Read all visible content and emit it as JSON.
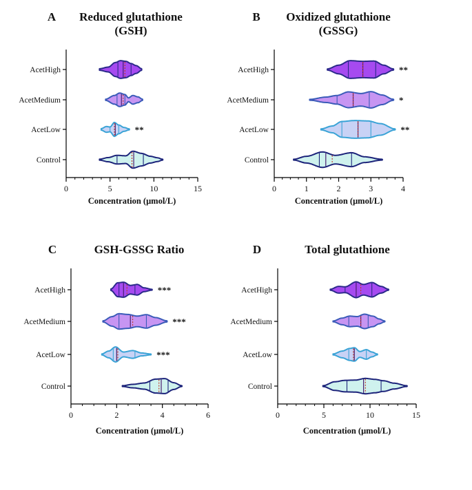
{
  "figure": {
    "categories": [
      "AcetHigh",
      "AcetMedium",
      "AcetLow",
      "Control"
    ],
    "fills": {
      "AcetHigh": "#a64af0",
      "AcetMedium": "#c795f2",
      "AcetLow": "#c8d2f5",
      "Control": "#cff2ee"
    },
    "outlines": {
      "AcetHigh": "#2b2a8a",
      "AcetMedium": "#3a5bb8",
      "AcetLow": "#3aa3d6",
      "Control": "#1c237a"
    },
    "median_color": "#4a1e6e",
    "mean_color": "#c0392b"
  },
  "chart_data": [
    {
      "type": "violin",
      "letter": "A",
      "title": [
        "Reduced glutathione",
        "(GSH)"
      ],
      "xlabel": "Concentration (μmol/L)",
      "xlim": [
        0,
        15
      ],
      "xticks": [
        0,
        5,
        10,
        15
      ],
      "minor_step": 1,
      "groups": [
        {
          "name": "AcetHigh",
          "min": 3.8,
          "max": 8.6,
          "median": 6.5,
          "q1": 5.9,
          "q3": 7.4,
          "mean": 6.7,
          "sig": "",
          "profile": [
            [
              3.8,
              0.08
            ],
            [
              4.8,
              0.25
            ],
            [
              5.6,
              0.72
            ],
            [
              6.2,
              0.92
            ],
            [
              6.8,
              0.85
            ],
            [
              7.4,
              0.62
            ],
            [
              8.0,
              0.4
            ],
            [
              8.6,
              0.08
            ]
          ]
        },
        {
          "name": "AcetMedium",
          "min": 4.5,
          "max": 8.7,
          "median": 6.3,
          "q1": 5.8,
          "q3": 6.7,
          "mean": 6.5,
          "sig": "",
          "profile": [
            [
              4.5,
              0.06
            ],
            [
              5.5,
              0.45
            ],
            [
              6.1,
              0.7
            ],
            [
              6.7,
              0.55
            ],
            [
              7.1,
              0.2
            ],
            [
              7.6,
              0.45
            ],
            [
              8.2,
              0.3
            ],
            [
              8.7,
              0.06
            ]
          ]
        },
        {
          "name": "AcetLow",
          "min": 4.0,
          "max": 7.2,
          "median": 5.6,
          "q1": 5.0,
          "q3": 6.0,
          "mean": 5.5,
          "sig": "**",
          "profile": [
            [
              4.0,
              0.08
            ],
            [
              4.6,
              0.3
            ],
            [
              5.0,
              0.25
            ],
            [
              5.5,
              0.72
            ],
            [
              6.0,
              0.45
            ],
            [
              6.6,
              0.2
            ],
            [
              7.2,
              0.05
            ]
          ]
        },
        {
          "name": "Control",
          "min": 3.8,
          "max": 11.0,
          "median": 7.7,
          "q1": 5.8,
          "q3": 8.8,
          "mean": 7.5,
          "sig": "",
          "profile": [
            [
              3.8,
              0.05
            ],
            [
              4.8,
              0.22
            ],
            [
              5.8,
              0.45
            ],
            [
              6.8,
              0.4
            ],
            [
              7.6,
              0.88
            ],
            [
              8.6,
              0.65
            ],
            [
              9.6,
              0.35
            ],
            [
              10.4,
              0.2
            ],
            [
              11.0,
              0.04
            ]
          ]
        }
      ]
    },
    {
      "type": "violin",
      "letter": "B",
      "title": [
        "Oxidized glutathione",
        "(GSSG)"
      ],
      "xlabel": "Concentration (μmol/L)",
      "xlim": [
        0,
        4
      ],
      "xticks": [
        0,
        1,
        2,
        3,
        4
      ],
      "minor_step": 0.25,
      "groups": [
        {
          "name": "AcetHigh",
          "min": 1.65,
          "max": 3.7,
          "median": 2.75,
          "q1": 2.3,
          "q3": 3.15,
          "mean": 2.75,
          "sig": "**",
          "profile": [
            [
              1.65,
              0.06
            ],
            [
              2.0,
              0.45
            ],
            [
              2.35,
              0.92
            ],
            [
              2.75,
              0.85
            ],
            [
              3.1,
              0.88
            ],
            [
              3.4,
              0.45
            ],
            [
              3.7,
              0.06
            ]
          ]
        },
        {
          "name": "AcetMedium",
          "min": 1.1,
          "max": 3.7,
          "median": 2.45,
          "q1": 1.95,
          "q3": 2.95,
          "mean": 2.45,
          "sig": "*",
          "profile": [
            [
              1.1,
              0.04
            ],
            [
              1.6,
              0.28
            ],
            [
              1.95,
              0.45
            ],
            [
              2.3,
              0.82
            ],
            [
              2.7,
              0.65
            ],
            [
              3.0,
              0.85
            ],
            [
              3.35,
              0.5
            ],
            [
              3.7,
              0.05
            ]
          ]
        },
        {
          "name": "AcetLow",
          "min": 1.45,
          "max": 3.75,
          "median": 2.6,
          "q1": 2.1,
          "q3": 3.0,
          "mean": 2.6,
          "sig": "**",
          "profile": [
            [
              1.45,
              0.05
            ],
            [
              1.8,
              0.35
            ],
            [
              2.1,
              0.82
            ],
            [
              2.5,
              0.92
            ],
            [
              2.9,
              0.88
            ],
            [
              3.3,
              0.6
            ],
            [
              3.75,
              0.05
            ]
          ]
        },
        {
          "name": "Control",
          "min": 0.6,
          "max": 3.35,
          "median": 1.6,
          "q1": 1.4,
          "q3": 2.4,
          "mean": 1.8,
          "sig": "",
          "profile": [
            [
              0.6,
              0.04
            ],
            [
              1.0,
              0.35
            ],
            [
              1.5,
              0.8
            ],
            [
              1.9,
              0.45
            ],
            [
              2.4,
              0.72
            ],
            [
              2.8,
              0.3
            ],
            [
              3.35,
              0.04
            ]
          ]
        }
      ]
    },
    {
      "type": "violin",
      "letter": "C",
      "title": [
        "GSH-GSSG Ratio"
      ],
      "xlabel": "Concentration (μmol/L)",
      "xlim": [
        0,
        6
      ],
      "xticks": [
        0,
        2,
        4,
        6
      ],
      "minor_step": 0.5,
      "groups": [
        {
          "name": "AcetHigh",
          "min": 1.75,
          "max": 3.55,
          "median": 2.3,
          "q1": 2.1,
          "q3": 2.8,
          "mean": 2.45,
          "sig": "***",
          "profile": [
            [
              1.75,
              0.08
            ],
            [
              2.05,
              0.72
            ],
            [
              2.3,
              0.78
            ],
            [
              2.6,
              0.45
            ],
            [
              2.9,
              0.55
            ],
            [
              3.2,
              0.2
            ],
            [
              3.55,
              0.04
            ]
          ]
        },
        {
          "name": "AcetMedium",
          "min": 1.4,
          "max": 4.2,
          "median": 2.6,
          "q1": 2.1,
          "q3": 3.3,
          "mean": 2.7,
          "sig": "***",
          "profile": [
            [
              1.4,
              0.06
            ],
            [
              1.8,
              0.5
            ],
            [
              2.1,
              0.8
            ],
            [
              2.5,
              0.72
            ],
            [
              2.9,
              0.55
            ],
            [
              3.3,
              0.7
            ],
            [
              3.7,
              0.4
            ],
            [
              4.2,
              0.06
            ]
          ]
        },
        {
          "name": "AcetLow",
          "min": 1.35,
          "max": 3.5,
          "median": 2.0,
          "q1": 1.85,
          "q3": 2.8,
          "mean": 2.05,
          "sig": "***",
          "profile": [
            [
              1.35,
              0.05
            ],
            [
              1.65,
              0.35
            ],
            [
              1.95,
              0.78
            ],
            [
              2.3,
              0.25
            ],
            [
              2.7,
              0.4
            ],
            [
              3.1,
              0.15
            ],
            [
              3.5,
              0.04
            ]
          ]
        },
        {
          "name": "Control",
          "min": 2.25,
          "max": 4.85,
          "median": 3.95,
          "q1": 3.45,
          "q3": 4.25,
          "mean": 3.85,
          "sig": "",
          "profile": [
            [
              2.25,
              0.04
            ],
            [
              2.7,
              0.18
            ],
            [
              3.2,
              0.32
            ],
            [
              3.7,
              0.72
            ],
            [
              4.1,
              0.78
            ],
            [
              4.5,
              0.35
            ],
            [
              4.85,
              0.04
            ]
          ]
        }
      ]
    },
    {
      "type": "violin",
      "letter": "D",
      "title": [
        "Total glutathione"
      ],
      "xlabel": "Concentration (μmol/L)",
      "xlim": [
        0,
        15
      ],
      "xticks": [
        0,
        5,
        10,
        15
      ],
      "minor_step": 1,
      "groups": [
        {
          "name": "AcetHigh",
          "min": 5.7,
          "max": 12.0,
          "median": 8.5,
          "q1": 7.3,
          "q3": 10.2,
          "mean": 9.0,
          "sig": "",
          "profile": [
            [
              5.7,
              0.05
            ],
            [
              6.6,
              0.35
            ],
            [
              7.3,
              0.3
            ],
            [
              8.5,
              0.82
            ],
            [
              9.3,
              0.55
            ],
            [
              10.2,
              0.75
            ],
            [
              11.2,
              0.35
            ],
            [
              12.0,
              0.05
            ]
          ]
        },
        {
          "name": "AcetMedium",
          "min": 6.0,
          "max": 11.6,
          "median": 9.0,
          "q1": 7.7,
          "q3": 9.8,
          "mean": 9.0,
          "sig": "",
          "profile": [
            [
              6.0,
              0.04
            ],
            [
              7.0,
              0.35
            ],
            [
              7.8,
              0.55
            ],
            [
              8.6,
              0.5
            ],
            [
              9.4,
              0.75
            ],
            [
              10.3,
              0.55
            ],
            [
              11.0,
              0.25
            ],
            [
              11.6,
              0.04
            ]
          ]
        },
        {
          "name": "AcetLow",
          "min": 6.0,
          "max": 10.8,
          "median": 8.3,
          "q1": 7.7,
          "q3": 9.6,
          "mean": 8.2,
          "sig": "",
          "profile": [
            [
              6.0,
              0.05
            ],
            [
              7.0,
              0.35
            ],
            [
              7.8,
              0.62
            ],
            [
              8.3,
              0.7
            ],
            [
              8.9,
              0.3
            ],
            [
              9.6,
              0.5
            ],
            [
              10.2,
              0.25
            ],
            [
              10.8,
              0.04
            ]
          ]
        },
        {
          "name": "Control",
          "min": 4.9,
          "max": 14.0,
          "median": 9.3,
          "q1": 7.5,
          "q3": 11.2,
          "mean": 9.5,
          "sig": "",
          "profile": [
            [
              4.9,
              0.04
            ],
            [
              6.2,
              0.45
            ],
            [
              7.3,
              0.6
            ],
            [
              8.4,
              0.62
            ],
            [
              9.5,
              0.8
            ],
            [
              10.5,
              0.7
            ],
            [
              11.5,
              0.55
            ],
            [
              12.6,
              0.3
            ],
            [
              14.0,
              0.04
            ]
          ]
        }
      ]
    }
  ]
}
